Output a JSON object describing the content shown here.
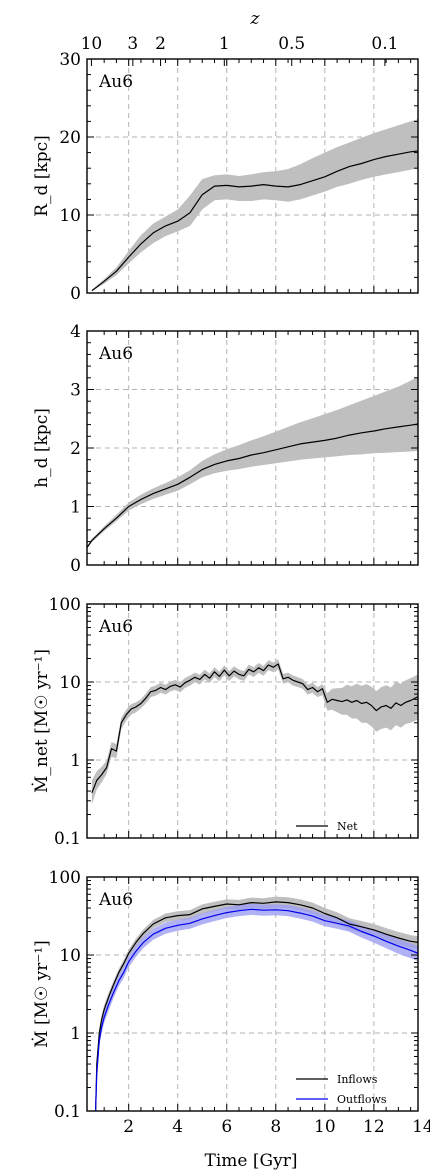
{
  "top_axis": {
    "label": "z",
    "ticks": [
      {
        "z": 10,
        "label": "10",
        "t": 0.48
      },
      {
        "z": 3,
        "label": "3",
        "t": 2.17
      },
      {
        "z": 2,
        "label": "2",
        "t": 3.3
      },
      {
        "z": 1,
        "label": "1",
        "t": 5.9
      },
      {
        "z": 0.5,
        "label": "0.5",
        "t": 8.65
      },
      {
        "z": 0.1,
        "label": "0.1",
        "t": 12.45
      }
    ]
  },
  "xaxis": {
    "label": "Time [Gyr]",
    "xlim": [
      0.3,
      13.8
    ],
    "ticks": [
      2,
      4,
      6,
      8,
      10,
      12,
      14
    ],
    "tick_labels": [
      "2",
      "4",
      "6",
      "8",
      "10",
      "12",
      "14"
    ]
  },
  "chart_data": [
    {
      "type": "line",
      "panel_label": "Au6",
      "ylabel": "R_d [kpc]",
      "yscale": "linear",
      "ylim": [
        0,
        30
      ],
      "yticks": [
        0,
        10,
        20,
        30
      ],
      "ytick_labels": [
        "0",
        "10",
        "20",
        "30"
      ],
      "series": [
        {
          "color": "#000000",
          "band_color": "#bfbfbf",
          "x": [
            0.5,
            1.0,
            1.5,
            2.0,
            2.5,
            3.0,
            3.5,
            4.0,
            4.5,
            5.0,
            5.5,
            6.0,
            6.5,
            7.0,
            7.5,
            8.0,
            8.5,
            9.0,
            9.5,
            10.0,
            10.5,
            11.0,
            11.5,
            12.0,
            12.5,
            13.0,
            13.5,
            13.8
          ],
          "y": [
            0.3,
            1.5,
            2.8,
            4.6,
            6.3,
            7.7,
            8.6,
            9.2,
            10.3,
            12.6,
            13.7,
            13.8,
            13.6,
            13.7,
            13.9,
            13.7,
            13.6,
            13.9,
            14.4,
            14.9,
            15.6,
            16.2,
            16.6,
            17.1,
            17.5,
            17.8,
            18.1,
            18.2
          ],
          "lower": [
            0.2,
            1.2,
            2.3,
            3.8,
            5.2,
            6.4,
            7.3,
            7.9,
            8.6,
            10.7,
            11.9,
            12.0,
            11.8,
            11.8,
            12.0,
            11.9,
            11.7,
            12.0,
            12.5,
            13.0,
            13.6,
            14.0,
            14.5,
            14.9,
            15.2,
            15.5,
            15.8,
            16.0
          ],
          "upper": [
            0.4,
            1.8,
            3.3,
            5.4,
            7.4,
            8.9,
            9.8,
            10.7,
            12.5,
            14.6,
            15.1,
            15.2,
            15.0,
            15.2,
            15.5,
            15.6,
            15.9,
            16.5,
            17.3,
            18.0,
            18.7,
            19.3,
            19.9,
            20.5,
            21.0,
            21.5,
            22.0,
            22.3
          ]
        }
      ]
    },
    {
      "type": "line",
      "panel_label": "Au6",
      "ylabel": "h_d [kpc]",
      "yscale": "linear",
      "ylim": [
        0,
        4
      ],
      "yticks": [
        0,
        1,
        2,
        3,
        4
      ],
      "ytick_labels": [
        "0",
        "1",
        "2",
        "3",
        "4"
      ],
      "series": [
        {
          "color": "#000000",
          "band_color": "#bfbfbf",
          "x": [
            0.3,
            0.5,
            1.0,
            1.5,
            2.0,
            2.5,
            3.0,
            3.5,
            4.0,
            4.5,
            5.0,
            5.5,
            6.0,
            6.5,
            7.0,
            7.5,
            8.0,
            8.5,
            9.0,
            9.5,
            10.0,
            10.5,
            11.0,
            11.5,
            12.0,
            12.5,
            13.0,
            13.5,
            13.8
          ],
          "y": [
            0.3,
            0.42,
            0.62,
            0.8,
            1.0,
            1.12,
            1.22,
            1.3,
            1.38,
            1.5,
            1.63,
            1.72,
            1.78,
            1.82,
            1.88,
            1.92,
            1.97,
            2.02,
            2.07,
            2.1,
            2.13,
            2.17,
            2.22,
            2.26,
            2.29,
            2.33,
            2.36,
            2.39,
            2.41
          ],
          "lower": [
            0.28,
            0.39,
            0.58,
            0.75,
            0.93,
            1.04,
            1.13,
            1.2,
            1.27,
            1.38,
            1.5,
            1.57,
            1.61,
            1.64,
            1.68,
            1.71,
            1.74,
            1.77,
            1.8,
            1.82,
            1.84,
            1.86,
            1.88,
            1.89,
            1.91,
            1.92,
            1.93,
            1.94,
            1.95
          ],
          "upper": [
            0.32,
            0.45,
            0.66,
            0.86,
            1.07,
            1.2,
            1.31,
            1.4,
            1.5,
            1.62,
            1.78,
            1.89,
            1.98,
            2.05,
            2.13,
            2.2,
            2.28,
            2.36,
            2.44,
            2.51,
            2.58,
            2.65,
            2.73,
            2.81,
            2.89,
            2.97,
            3.05,
            3.15,
            3.22
          ]
        }
      ]
    },
    {
      "type": "line",
      "panel_label": "Au6",
      "ylabel": "Ṁ_net [M☉ yr⁻¹]",
      "yscale": "log",
      "ylim": [
        0.1,
        100
      ],
      "yticks": [
        0.1,
        1,
        10,
        100
      ],
      "ytick_labels": [
        "0.1",
        "1",
        "10",
        "100"
      ],
      "legend": {
        "placement": "lower-right",
        "entries": [
          "Net"
        ]
      },
      "series": [
        {
          "name": "Net",
          "color": "#000000",
          "band_color": "#bfbfbf",
          "x": [
            0.5,
            0.7,
            0.9,
            1.1,
            1.3,
            1.5,
            1.7,
            1.9,
            2.1,
            2.3,
            2.5,
            2.7,
            2.9,
            3.1,
            3.3,
            3.5,
            3.7,
            3.9,
            4.1,
            4.3,
            4.5,
            4.7,
            4.9,
            5.1,
            5.3,
            5.5,
            5.7,
            5.9,
            6.1,
            6.3,
            6.5,
            6.7,
            6.9,
            7.1,
            7.3,
            7.5,
            7.7,
            7.9,
            8.1,
            8.3,
            8.5,
            8.7,
            8.9,
            9.1,
            9.3,
            9.5,
            9.7,
            9.9,
            10.1,
            10.3,
            10.5,
            10.7,
            10.9,
            11.1,
            11.3,
            11.5,
            11.7,
            11.9,
            12.1,
            12.3,
            12.5,
            12.7,
            12.9,
            13.1,
            13.3,
            13.5,
            13.8
          ],
          "y": [
            0.38,
            0.55,
            0.65,
            0.8,
            1.4,
            1.3,
            3.0,
            3.8,
            4.5,
            4.8,
            5.3,
            6.2,
            7.5,
            7.8,
            8.5,
            8.0,
            8.8,
            9.2,
            8.6,
            9.8,
            10.5,
            11.5,
            10.8,
            12.5,
            11.2,
            13.5,
            11.8,
            14.2,
            12.0,
            13.8,
            12.5,
            12.0,
            14.5,
            13.5,
            15.2,
            14.0,
            16.5,
            15.5,
            17.0,
            11.0,
            11.5,
            10.5,
            10.0,
            9.5,
            8.0,
            8.5,
            7.5,
            8.2,
            5.5,
            6.0,
            5.8,
            5.6,
            5.9,
            5.5,
            5.8,
            5.3,
            5.5,
            5.0,
            4.3,
            4.8,
            5.0,
            4.6,
            5.4,
            5.0,
            5.5,
            5.8,
            6.5
          ],
          "lower": [
            0.27,
            0.42,
            0.52,
            0.66,
            1.1,
            1.05,
            2.5,
            3.2,
            3.8,
            4.1,
            4.6,
            5.3,
            6.4,
            6.7,
            7.3,
            6.9,
            7.6,
            7.9,
            7.4,
            8.4,
            9.0,
            9.9,
            9.3,
            10.8,
            9.7,
            11.6,
            10.2,
            12.2,
            10.3,
            11.9,
            10.8,
            10.3,
            12.5,
            11.6,
            13.1,
            12.0,
            14.2,
            13.3,
            14.6,
            9.5,
            9.9,
            9.0,
            8.6,
            8.2,
            6.9,
            7.3,
            6.4,
            6.8,
            4.3,
            4.4,
            4.1,
            3.8,
            3.8,
            3.4,
            3.4,
            3.0,
            3.0,
            2.7,
            2.3,
            2.5,
            2.6,
            2.4,
            2.8,
            2.6,
            2.9,
            3.0,
            3.3
          ],
          "upper": [
            0.55,
            0.72,
            0.82,
            0.98,
            1.7,
            1.6,
            3.5,
            4.4,
            5.2,
            5.5,
            6.0,
            7.1,
            8.6,
            9.0,
            9.8,
            9.2,
            10.1,
            10.6,
            9.9,
            11.3,
            12.1,
            13.2,
            12.4,
            14.4,
            12.9,
            15.5,
            13.6,
            16.3,
            13.8,
            15.9,
            14.4,
            13.8,
            16.7,
            15.5,
            17.5,
            16.1,
            19.0,
            17.8,
            19.6,
            12.7,
            13.2,
            12.1,
            11.5,
            10.9,
            9.2,
            9.8,
            8.6,
            9.4,
            7.2,
            8.2,
            8.3,
            8.4,
            9.2,
            8.8,
            9.5,
            8.9,
            9.4,
            8.7,
            7.6,
            8.6,
            9.1,
            8.5,
            10.1,
            9.5,
            10.5,
            11.2,
            12.5
          ]
        }
      ]
    },
    {
      "type": "line",
      "panel_label": "Au6",
      "ylabel": "Ṁ [M☉ yr⁻¹]",
      "yscale": "log",
      "ylim": [
        0.1,
        100
      ],
      "yticks": [
        0.1,
        1,
        10,
        100
      ],
      "ytick_labels": [
        "0.1",
        "1",
        "10",
        "100"
      ],
      "legend": {
        "placement": "lower-right",
        "entries": [
          "Inflows",
          "Outflows"
        ]
      },
      "series": [
        {
          "name": "Inflows",
          "color": "#000000",
          "band_color": "#bfbfbf",
          "x": [
            0.65,
            0.7,
            0.8,
            0.9,
            1.0,
            1.2,
            1.4,
            1.6,
            1.8,
            2.0,
            2.3,
            2.6,
            3.0,
            3.5,
            4.0,
            4.5,
            5.0,
            5.5,
            6.0,
            6.5,
            7.0,
            7.5,
            8.0,
            8.5,
            9.0,
            9.5,
            10.0,
            10.5,
            11.0,
            11.5,
            12.0,
            12.5,
            13.0,
            13.5,
            13.8
          ],
          "y": [
            0.1,
            0.4,
            1.0,
            1.5,
            2.0,
            3.0,
            4.3,
            6.0,
            7.8,
            10.5,
            14.5,
            19.0,
            25.0,
            30.0,
            32.0,
            33.0,
            39.0,
            42.0,
            45.0,
            44.0,
            47.0,
            46.0,
            48.0,
            47.0,
            44.0,
            40.0,
            34.0,
            30.0,
            25.0,
            23.0,
            21.0,
            18.5,
            16.5,
            15.0,
            14.5
          ],
          "lower": [
            0.1,
            0.35,
            0.85,
            1.3,
            1.7,
            2.6,
            3.8,
            5.3,
            6.9,
            9.3,
            12.8,
            16.7,
            22.0,
            26.4,
            28.0,
            28.7,
            33.9,
            36.3,
            38.9,
            37.8,
            40.2,
            39.2,
            40.8,
            39.8,
            37.2,
            33.8,
            28.6,
            25.2,
            20.9,
            19.2,
            17.5,
            15.3,
            13.6,
            12.3,
            11.8
          ],
          "upper": [
            0.12,
            0.46,
            1.15,
            1.7,
            2.3,
            3.4,
            4.8,
            6.7,
            8.7,
            11.7,
            16.3,
            21.3,
            28.2,
            34.0,
            36.3,
            37.6,
            44.6,
            48.3,
            51.9,
            50.9,
            54.5,
            53.5,
            56.0,
            55.0,
            51.6,
            47.0,
            40.1,
            35.4,
            29.6,
            27.3,
            25.0,
            22.1,
            19.8,
            18.0,
            17.4
          ]
        },
        {
          "name": "Outflows",
          "color": "#0000ee",
          "band_color": "#9d9df2",
          "x": [
            0.65,
            0.7,
            0.8,
            0.9,
            1.0,
            1.2,
            1.4,
            1.6,
            1.8,
            2.0,
            2.3,
            2.6,
            3.0,
            3.5,
            4.0,
            4.5,
            5.0,
            5.5,
            6.0,
            6.5,
            7.0,
            7.5,
            8.0,
            8.5,
            9.0,
            9.5,
            10.0,
            10.5,
            11.0,
            11.5,
            12.0,
            12.5,
            13.0,
            13.5,
            13.8
          ],
          "y": [
            0.1,
            0.3,
            0.8,
            1.2,
            1.6,
            2.4,
            3.4,
            4.7,
            6.0,
            8.2,
            11.2,
            14.5,
            18.5,
            22.0,
            24.0,
            25.5,
            29.0,
            32.0,
            35.0,
            37.0,
            38.5,
            37.5,
            38.0,
            37.0,
            34.5,
            31.5,
            27.5,
            25.5,
            23.5,
            20.0,
            17.5,
            15.0,
            13.0,
            11.5,
            10.5
          ],
          "lower": [
            0.1,
            0.26,
            0.68,
            1.0,
            1.35,
            2.0,
            2.9,
            4.0,
            5.1,
            7.0,
            9.5,
            12.3,
            15.7,
            18.7,
            20.4,
            21.7,
            24.7,
            27.2,
            29.8,
            31.5,
            32.7,
            31.9,
            32.3,
            31.5,
            29.3,
            26.8,
            23.4,
            21.7,
            19.9,
            16.7,
            14.4,
            12.2,
            10.4,
            9.1,
            8.3
          ],
          "upper": [
            0.12,
            0.35,
            0.94,
            1.4,
            1.9,
            2.8,
            4.0,
            5.5,
            7.1,
            9.7,
            13.2,
            17.1,
            21.8,
            26.0,
            28.3,
            30.1,
            34.2,
            37.8,
            41.3,
            43.7,
            45.4,
            44.3,
            44.8,
            43.7,
            40.7,
            37.2,
            32.5,
            30.1,
            27.7,
            23.8,
            21.0,
            18.2,
            15.9,
            14.2,
            13.0
          ]
        }
      ]
    }
  ]
}
